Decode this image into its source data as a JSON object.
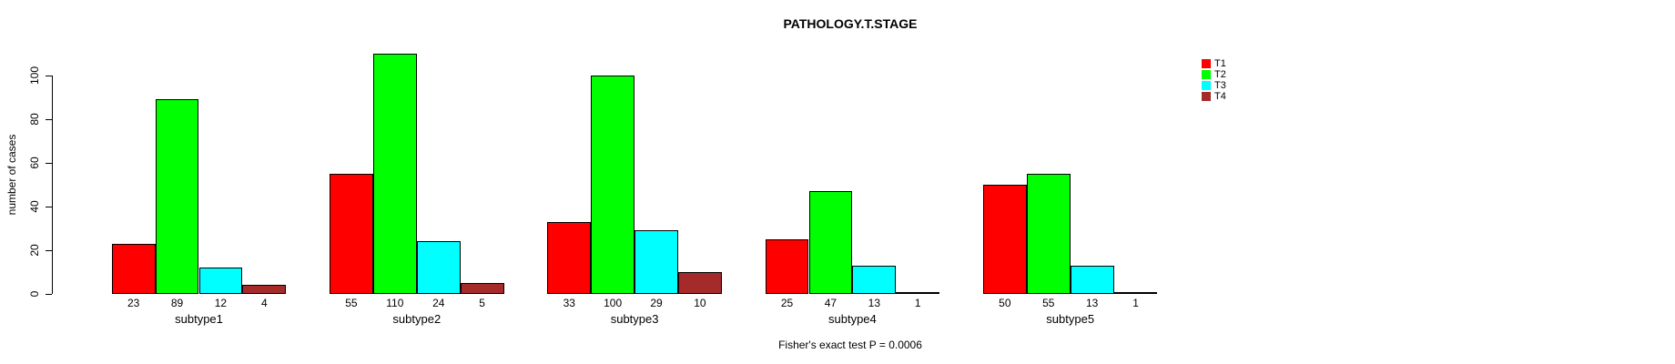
{
  "chart_data": {
    "type": "bar",
    "grouped": true,
    "title": "PATHOLOGY.T.STAGE",
    "xlabel": "",
    "ylabel": "number of cases",
    "ylim": [
      0,
      110
    ],
    "yticks": [
      0,
      20,
      40,
      60,
      80,
      100
    ],
    "categories": [
      "subtype1",
      "subtype2",
      "subtype3",
      "subtype4",
      "subtype5"
    ],
    "series": [
      {
        "name": "T1",
        "color": "#ff0000",
        "values": [
          23,
          55,
          33,
          25,
          50
        ]
      },
      {
        "name": "T2",
        "color": "#00ff00",
        "values": [
          89,
          110,
          100,
          47,
          55
        ]
      },
      {
        "name": "T3",
        "color": "#00ffff",
        "values": [
          12,
          24,
          29,
          13,
          13
        ]
      },
      {
        "name": "T4",
        "color": "#a52a2a",
        "values": [
          4,
          5,
          10,
          1,
          1
        ]
      }
    ],
    "bar_value_labels": [
      [
        "23",
        "89",
        "12",
        "4"
      ],
      [
        "55",
        "110",
        "24",
        "5"
      ],
      [
        "33",
        "100",
        "29",
        "10"
      ],
      [
        "25",
        "47",
        "13",
        "1"
      ],
      [
        "50",
        "55",
        "13",
        "1"
      ]
    ],
    "legend_position": "right",
    "grid": false,
    "annotation": "Fisher's exact test P = 0.0006"
  }
}
